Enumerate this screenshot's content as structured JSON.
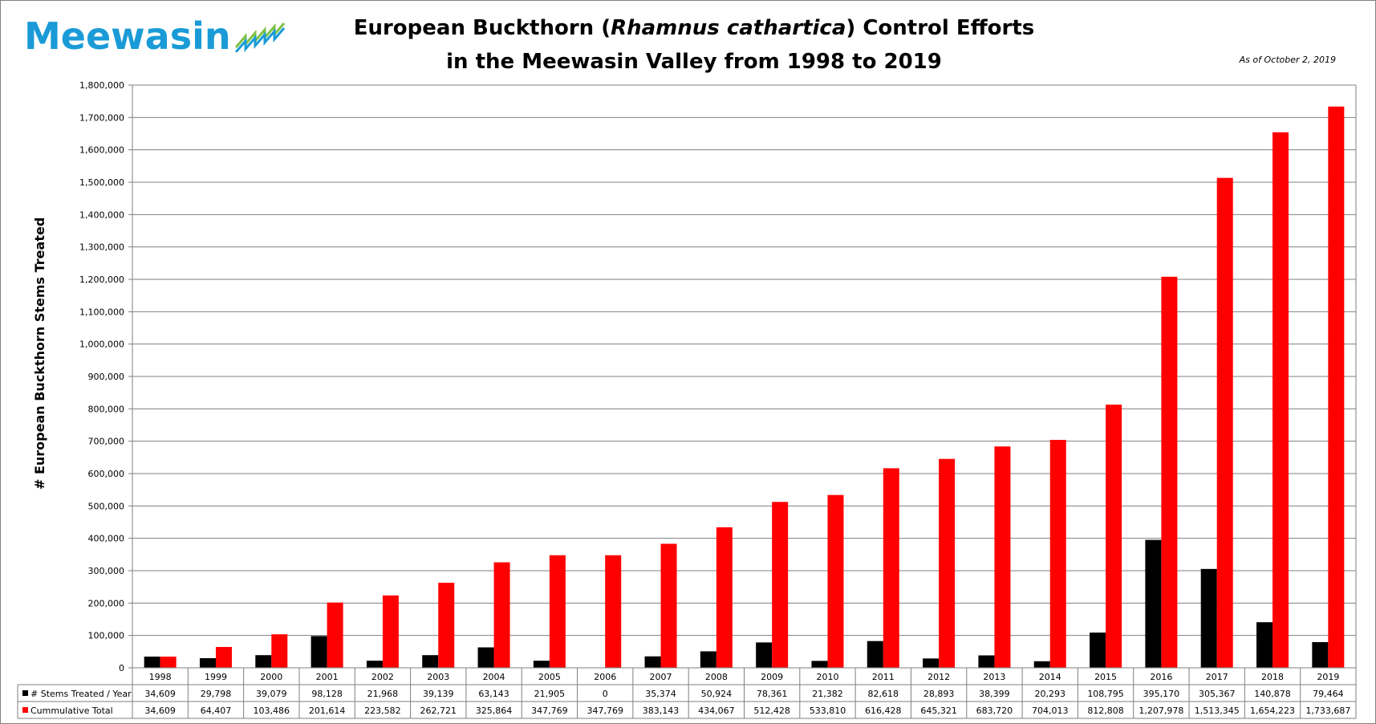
{
  "logo": {
    "text": "Meewasin"
  },
  "title": {
    "line1_before": "European Buckthorn (",
    "line1_italic": "Rhamnus cathartica",
    "line1_after": ") Control Efforts",
    "line2": "in the Meewasin Valley from 1998 to 2019"
  },
  "as_of": "As of October 2, 2019",
  "colors": {
    "yearly": "#000000",
    "cumulative": "#ff0000",
    "logo": "#1a9bd7",
    "logo_mark": "#7dc243"
  },
  "chart_data": {
    "type": "bar",
    "title": "European Buckthorn (Rhamnus cathartica) Control Efforts in the Meewasin Valley from 1998 to 2019",
    "ylabel": "# European Buckthorn  Stems Treated",
    "xlabel": "",
    "ylim": [
      0,
      1800000
    ],
    "ytick_step": 100000,
    "ytick_labels": [
      "0",
      "100,000",
      "200,000",
      "300,000",
      "400,000",
      "500,000",
      "600,000",
      "700,000",
      "800,000",
      "900,000",
      "1,000,000",
      "1,100,000",
      "1,200,000",
      "1,300,000",
      "1,400,000",
      "1,500,000",
      "1,600,000",
      "1,700,000",
      "1,800,000"
    ],
    "grid": true,
    "legend": "data-table",
    "categories": [
      "1998",
      "1999",
      "2000",
      "2001",
      "2002",
      "2003",
      "2004",
      "2005",
      "2006",
      "2007",
      "2008",
      "2009",
      "2010",
      "2011",
      "2012",
      "2013",
      "2014",
      "2015",
      "2016",
      "2017",
      "2018",
      "2019"
    ],
    "series": [
      {
        "name": "# Stems Treated / Year",
        "color": "#000000",
        "values": [
          34609,
          29798,
          39079,
          98128,
          21968,
          39139,
          63143,
          21905,
          0,
          35374,
          50924,
          78361,
          21382,
          82618,
          28893,
          38399,
          20293,
          108795,
          395170,
          305367,
          140878,
          79464
        ],
        "labels": [
          "34,609",
          "29,798",
          "39,079",
          "98,128",
          "21,968",
          "39,139",
          "63,143",
          "21,905",
          "0",
          "35,374",
          "50,924",
          "78,361",
          "21,382",
          "82,618",
          "28,893",
          "38,399",
          "20,293",
          "108,795",
          "395,170",
          "305,367",
          "140,878",
          "79,464"
        ]
      },
      {
        "name": "Cummulative Total",
        "color": "#ff0000",
        "values": [
          34609,
          64407,
          103486,
          201614,
          223582,
          262721,
          325864,
          347769,
          347769,
          383143,
          434067,
          512428,
          533810,
          616428,
          645321,
          683720,
          704013,
          812808,
          1207978,
          1513345,
          1654223,
          1733687
        ],
        "labels": [
          "34,609",
          "64,407",
          "103,486",
          "201,614",
          "223,582",
          "262,721",
          "325,864",
          "347,769",
          "347,769",
          "383,143",
          "434,067",
          "512,428",
          "533,810",
          "616,428",
          "645,321",
          "683,720",
          "704,013",
          "812,808",
          "1,207,978",
          "1,513,345",
          "1,654,223",
          "1,733,687"
        ]
      }
    ]
  }
}
